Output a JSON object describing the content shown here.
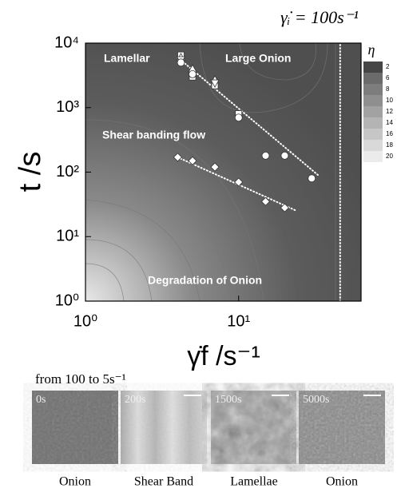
{
  "chart_data": {
    "type": "scatter",
    "title": "γ̇ᵢ = 100s⁻¹",
    "x_label": "γ̇f /s⁻¹",
    "y_label": "t /s",
    "log_x": true,
    "log_y": true,
    "xlim": [
      1,
      63
    ],
    "ylim": [
      1,
      10000
    ],
    "xticks": [
      {
        "value": 1,
        "label": "10⁰"
      },
      {
        "value": 10,
        "label": "10¹"
      }
    ],
    "yticks": [
      {
        "value": 1,
        "label": "10⁰"
      },
      {
        "value": 10,
        "label": "10¹"
      },
      {
        "value": 100,
        "label": "10²"
      },
      {
        "value": 1000,
        "label": "10³"
      },
      {
        "value": 10000,
        "label": "10⁴"
      }
    ],
    "series": [
      {
        "marker": "square",
        "color": "#ffffff",
        "x": [
          4.2,
          5,
          7,
          10
        ],
        "values": [
          6500,
          3000,
          2200,
          800
        ]
      },
      {
        "marker": "triangle-up",
        "color": "#ffffff",
        "x": [
          4.2,
          5,
          7
        ],
        "values": [
          6000,
          4000,
          2700
        ]
      },
      {
        "marker": "triangle-down",
        "color": "#ffffff",
        "x": [
          4.2,
          7
        ],
        "values": [
          5500,
          2400
        ]
      },
      {
        "marker": "circle",
        "color": "#ffffff",
        "x": [
          4.2,
          5,
          10,
          15,
          20,
          30
        ],
        "values": [
          5000,
          3300,
          700,
          180,
          180,
          80
        ]
      },
      {
        "marker": "diamond",
        "color": "#ffffff",
        "x": [
          4,
          5,
          7,
          10,
          15,
          20
        ],
        "values": [
          170,
          150,
          120,
          70,
          35,
          28
        ]
      }
    ],
    "lines": [
      {
        "x": [
          4,
          33
        ],
        "values": [
          6000,
          90
        ]
      },
      {
        "x": [
          4,
          24
        ],
        "values": [
          170,
          25
        ]
      },
      {
        "x": [
          46,
          46
        ],
        "values": [
          1,
          10000
        ]
      }
    ],
    "annotations": [
      "Lamellar",
      "Large Onion",
      "Shear banding flow",
      "Degradation of Onion"
    ],
    "colorbar": {
      "label": "η",
      "ticks": [
        2,
        6,
        8,
        10,
        12,
        14,
        16,
        18,
        20
      ]
    }
  },
  "figure_panels": {
    "caption": "from 100 to 5s⁻¹",
    "panels": [
      {
        "time": "0s",
        "label": "Onion"
      },
      {
        "time": "200s",
        "label": "Shear Band"
      },
      {
        "time": "1500s",
        "label": "Lamellae"
      },
      {
        "time": "5000s",
        "label": "Onion"
      }
    ]
  }
}
